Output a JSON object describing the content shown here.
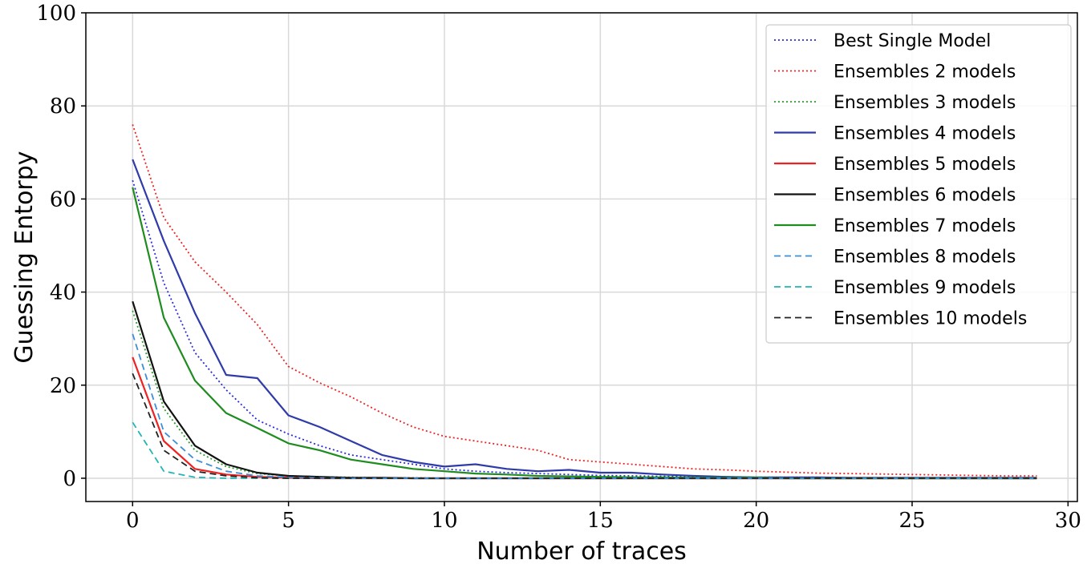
{
  "chart_data": {
    "type": "line",
    "title": "",
    "xlabel": "Number of traces",
    "ylabel": "Guessing Entorpy",
    "xlim": [
      -1.5,
      30.3
    ],
    "ylim": [
      -5,
      100
    ],
    "xticks": [
      0,
      5,
      10,
      15,
      20,
      25,
      30
    ],
    "yticks": [
      0,
      20,
      40,
      60,
      80,
      100
    ],
    "grid": true,
    "legend_position": "top-right",
    "x": [
      0,
      1,
      2,
      3,
      4,
      5,
      6,
      7,
      8,
      9,
      10,
      11,
      12,
      13,
      14,
      15,
      16,
      17,
      18,
      19,
      20,
      21,
      22,
      23,
      24,
      25,
      26,
      27,
      28,
      29
    ],
    "series": [
      {
        "name": "Best Single Model",
        "color": "#2b2bd8",
        "style": "dotted",
        "values": [
          64,
          42,
          27,
          19,
          12.5,
          9.5,
          7,
          5,
          4,
          3,
          2,
          1.5,
          1.2,
          1,
          0.8,
          0.6,
          0.5,
          0.4,
          0.3,
          0.3,
          0.2,
          0.2,
          0.2,
          0.1,
          0.1,
          0.1,
          0.1,
          0.1,
          0.1,
          0.1
        ]
      },
      {
        "name": "Ensembles 2 models",
        "color": "#ee2222",
        "style": "dotted",
        "values": [
          76,
          56,
          46.5,
          40,
          33,
          24,
          20.5,
          17.5,
          14,
          11,
          9,
          8,
          7,
          6,
          4,
          3.5,
          3,
          2.5,
          2,
          1.8,
          1.5,
          1.3,
          1.1,
          1,
          0.9,
          0.8,
          0.7,
          0.6,
          0.5,
          0.5
        ]
      },
      {
        "name": "Ensembles 3 models",
        "color": "#2a9d2a",
        "style": "dotted",
        "values": [
          36,
          15,
          6,
          2.5,
          1,
          0.5,
          0.3,
          0.2,
          0.1,
          0.1,
          0,
          0,
          0,
          0,
          0,
          0,
          0,
          0,
          0,
          0,
          0,
          0,
          0,
          0,
          0,
          0,
          0,
          0,
          0,
          0
        ]
      },
      {
        "name": "Ensembles 4 models",
        "color": "#2e3ba8",
        "style": "solid",
        "values": [
          68.5,
          51,
          35.5,
          22.2,
          21.5,
          13.5,
          11,
          8,
          5,
          3.5,
          2.5,
          3,
          2,
          1.5,
          1.8,
          1.2,
          1.2,
          0.8,
          0.5,
          0.3,
          0.2,
          0.2,
          0.2,
          0.1,
          0.1,
          0.1,
          0.1,
          0.1,
          0.1,
          0.1
        ]
      },
      {
        "name": "Ensembles 5 models",
        "color": "#ee2222",
        "style": "solid",
        "values": [
          26,
          8,
          2,
          0.8,
          0.3,
          0.1,
          0,
          0,
          0,
          0,
          0,
          0,
          0,
          0,
          0,
          0,
          0,
          0,
          0,
          0,
          0,
          0,
          0,
          0,
          0,
          0,
          0,
          0,
          0,
          0
        ]
      },
      {
        "name": "Ensembles 6 models",
        "color": "#111111",
        "style": "solid",
        "values": [
          38,
          16.5,
          7,
          3,
          1.2,
          0.5,
          0.3,
          0.1,
          0.1,
          0,
          0,
          0,
          0,
          0,
          0,
          0,
          0,
          0,
          0,
          0,
          0,
          0,
          0,
          0,
          0,
          0,
          0,
          0,
          0,
          0
        ]
      },
      {
        "name": "Ensembles 7 models",
        "color": "#1e8c1e",
        "style": "solid",
        "values": [
          62.5,
          34.5,
          21,
          14,
          10.8,
          7.5,
          6,
          4,
          3,
          2,
          1.5,
          1,
          0.8,
          0.5,
          0.4,
          0.3,
          0.2,
          0.2,
          0.1,
          0.1,
          0.1,
          0,
          0,
          0,
          0,
          0,
          0,
          0,
          0,
          0
        ]
      },
      {
        "name": "Ensembles 8 models",
        "color": "#3a8fd8",
        "style": "dashed",
        "values": [
          31,
          10,
          4,
          1.5,
          0.5,
          0.2,
          0.1,
          0,
          0,
          0,
          0,
          0,
          0,
          0,
          0,
          0,
          0,
          0,
          0,
          0,
          0,
          0,
          0,
          0,
          0,
          0,
          0,
          0,
          0,
          0
        ]
      },
      {
        "name": "Ensembles 9 models",
        "color": "#22b5b5",
        "style": "dashed",
        "values": [
          12,
          1.5,
          0.2,
          0,
          0,
          0,
          0,
          0,
          0,
          0,
          0,
          0,
          0,
          0,
          0,
          0,
          0,
          0,
          0,
          0,
          0,
          0,
          0,
          0,
          0,
          0,
          0,
          0,
          0,
          0
        ]
      },
      {
        "name": "Ensembles 10 models",
        "color": "#222222",
        "style": "dashed",
        "values": [
          22.5,
          6,
          1.5,
          0.5,
          0.1,
          0,
          0,
          0,
          0,
          0,
          0,
          0,
          0,
          0,
          0,
          0,
          0,
          0,
          0,
          0,
          0,
          0,
          0,
          0,
          0,
          0,
          0,
          0,
          0,
          0
        ]
      }
    ]
  }
}
